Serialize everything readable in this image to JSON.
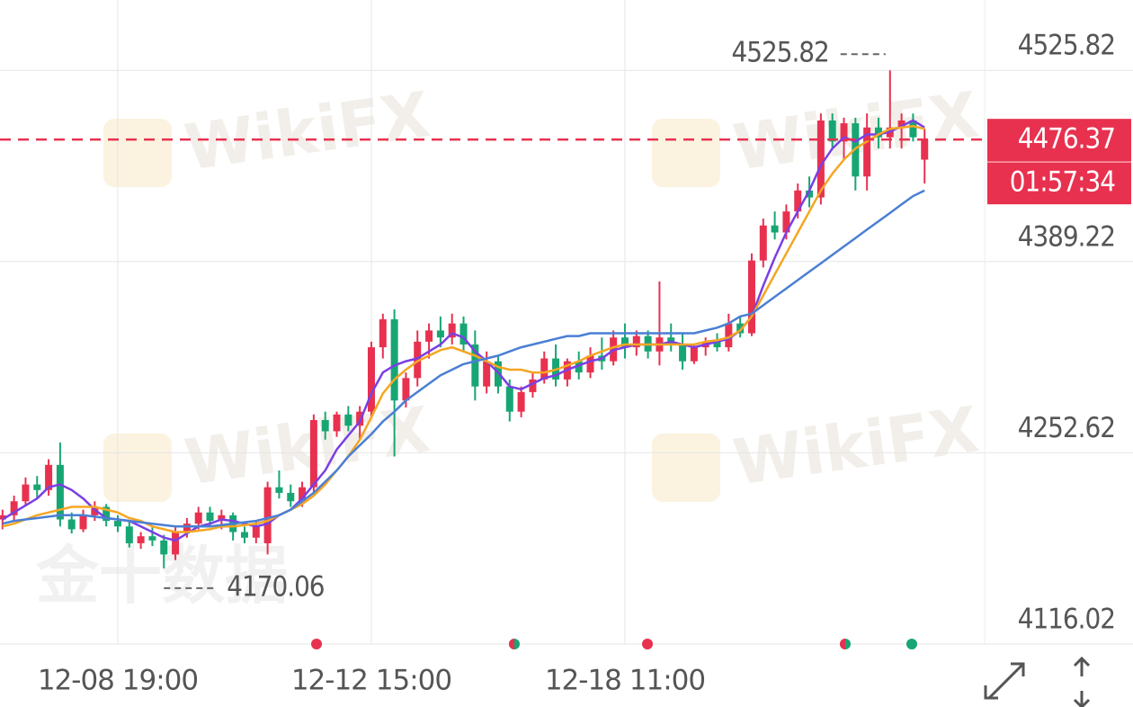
{
  "chart_data": {
    "type": "candlestick",
    "categories": [
      null,
      null,
      null,
      null,
      null,
      null,
      null,
      null,
      null,
      null,
      "12-08 19:00",
      null,
      null,
      null,
      null,
      null,
      null,
      null,
      null,
      null,
      null,
      null,
      null,
      null,
      null,
      null,
      null,
      null,
      null,
      null,
      null,
      null,
      "12-12 15:00",
      null,
      null,
      null,
      null,
      null,
      null,
      null,
      null,
      null,
      null,
      null,
      null,
      null,
      null,
      null,
      null,
      null,
      null,
      null,
      null,
      null,
      "12-18 11:00",
      null,
      null,
      null,
      null,
      null,
      null,
      null,
      null,
      null,
      null,
      null,
      null,
      null,
      null,
      null,
      null,
      null,
      null,
      null,
      null,
      null,
      null,
      null,
      null,
      null,
      null
    ],
    "open": [
      4205,
      4208,
      4218,
      4230,
      4226,
      4244,
      4205,
      4198,
      4208,
      4214,
      4204,
      4200,
      4188,
      4193,
      4190,
      4180,
      4196,
      4202,
      4210,
      4204,
      4208,
      4196,
      4192,
      4188,
      4228,
      4224,
      4218,
      4228,
      4276,
      4268,
      4280,
      4272,
      4282,
      4328,
      4348,
      4290,
      4306,
      4332,
      4340,
      4335,
      4345,
      4330,
      4300,
      4318,
      4300,
      4282,
      4296,
      4305,
      4320,
      4305,
      4318,
      4310,
      4322,
      4318,
      4335,
      4328,
      4336,
      4325,
      4335,
      4330,
      4318,
      4328,
      4332,
      4328,
      4345,
      4338,
      4390,
      4415,
      4410,
      4425,
      4440,
      4435,
      4490,
      4475,
      4488,
      4450,
      4485,
      4478,
      4485,
      4490,
      4462
    ],
    "high": [
      4212,
      4222,
      4235,
      4236,
      4248,
      4260,
      4210,
      4212,
      4218,
      4216,
      4208,
      4204,
      4196,
      4200,
      4194,
      4200,
      4206,
      4214,
      4214,
      4212,
      4210,
      4200,
      4204,
      4232,
      4240,
      4230,
      4232,
      4280,
      4282,
      4282,
      4286,
      4286,
      4332,
      4352,
      4355,
      4310,
      4340,
      4345,
      4350,
      4352,
      4350,
      4340,
      4325,
      4322,
      4305,
      4300,
      4310,
      4325,
      4330,
      4320,
      4325,
      4328,
      4335,
      4340,
      4345,
      4340,
      4340,
      4375,
      4345,
      4338,
      4330,
      4335,
      4338,
      4352,
      4350,
      4395,
      4420,
      4425,
      4430,
      4445,
      4450,
      4495,
      4495,
      4492,
      4492,
      4495,
      4492,
      4525.82,
      4495,
      4495,
      4484
    ],
    "low": [
      4198,
      4204,
      4215,
      4220,
      4222,
      4200,
      4195,
      4196,
      4204,
      4200,
      4196,
      4185,
      4184,
      4186,
      4170.06,
      4176,
      4192,
      4198,
      4200,
      4198,
      4190,
      4188,
      4188,
      4180,
      4220,
      4214,
      4214,
      4224,
      4262,
      4264,
      4268,
      4262,
      4278,
      4320,
      4250,
      4285,
      4300,
      4320,
      4328,
      4330,
      4325,
      4290,
      4295,
      4295,
      4275,
      4278,
      4292,
      4302,
      4300,
      4300,
      4305,
      4306,
      4312,
      4315,
      4320,
      4322,
      4320,
      4315,
      4325,
      4312,
      4316,
      4322,
      4325,
      4325,
      4335,
      4336,
      4385,
      4405,
      4405,
      4420,
      4428,
      4430,
      4470,
      4462,
      4440,
      4440,
      4470,
      4470,
      4470,
      4475,
      4445
    ],
    "close": [
      4208,
      4218,
      4230,
      4226,
      4244,
      4205,
      4198,
      4208,
      4214,
      4204,
      4200,
      4188,
      4193,
      4190,
      4180,
      4196,
      4202,
      4210,
      4204,
      4208,
      4196,
      4192,
      4200,
      4228,
      4224,
      4218,
      4228,
      4276,
      4268,
      4280,
      4272,
      4282,
      4328,
      4348,
      4290,
      4306,
      4332,
      4340,
      4335,
      4345,
      4330,
      4300,
      4318,
      4300,
      4282,
      4296,
      4305,
      4320,
      4305,
      4318,
      4310,
      4322,
      4318,
      4335,
      4328,
      4336,
      4325,
      4335,
      4330,
      4318,
      4328,
      4332,
      4328,
      4345,
      4338,
      4390,
      4415,
      4410,
      4425,
      4440,
      4435,
      4490,
      4475,
      4488,
      4450,
      4485,
      4478,
      4485,
      4490,
      4478,
      4476.37
    ],
    "up_color": "#e8314f",
    "down_color": "#17a673",
    "series": [
      {
        "color": "#7b3fe4",
        "values": [
          4205,
          4210,
          4215,
          4220,
          4228,
          4230,
          4226,
          4220,
          4212,
          4206,
          4205,
          4204,
          4200,
          4196,
          4192,
          4190,
          4195,
          4200,
          4202,
          4205,
          4204,
          4202,
          4200,
          4202,
          4208,
          4212,
          4220,
          4230,
          4240,
          4255,
          4265,
          4275,
          4295,
          4310,
          4315,
          4318,
          4320,
          4325,
          4330,
          4338,
          4335,
          4325,
          4318,
          4310,
          4300,
          4298,
          4302,
          4306,
          4308,
          4312,
          4315,
          4318,
          4320,
          4326,
          4328,
          4330,
          4330,
          4330,
          4332,
          4330,
          4328,
          4330,
          4332,
          4334,
          4340,
          4350,
          4372,
          4392,
          4410,
          4425,
          4440,
          4458,
          4470,
          4478,
          4475,
          4480,
          4480,
          4482,
          4486,
          4490,
          4485
        ]
      },
      {
        "color": "#f5a623",
        "values": [
          4200,
          4202,
          4205,
          4208,
          4210,
          4212,
          4214,
          4214,
          4214,
          4212,
          4210,
          4206,
          4204,
          4200,
          4198,
          4196,
          4196,
          4197,
          4198,
          4200,
          4200,
          4201,
          4202,
          4204,
          4208,
          4212,
          4216,
          4222,
          4230,
          4240,
          4250,
          4262,
          4278,
          4295,
          4305,
          4312,
          4318,
          4322,
          4326,
          4328,
          4325,
          4322,
          4318,
          4314,
          4312,
          4312,
          4310,
          4310,
          4312,
          4315,
          4318,
          4322,
          4325,
          4328,
          4330,
          4330,
          4330,
          4330,
          4330,
          4330,
          4330,
          4332,
          4333,
          4335,
          4340,
          4350,
          4365,
          4380,
          4395,
          4410,
          4425,
          4440,
          4452,
          4462,
          4470,
          4475,
          4480,
          4484,
          4485,
          4486,
          4484
        ]
      },
      {
        "color": "#4a7fd4",
        "values": [
          4202,
          4204,
          4205,
          4206,
          4207,
          4208,
          4208,
          4208,
          4207,
          4206,
          4205,
          4204,
          4203,
          4202,
          4201,
          4200,
          4200,
          4200,
          4200,
          4201,
          4202,
          4203,
          4204,
          4206,
          4208,
          4212,
          4218,
          4224,
          4232,
          4240,
          4250,
          4258,
          4266,
          4275,
          4282,
          4290,
          4296,
          4302,
          4308,
          4312,
          4316,
          4318,
          4320,
          4322,
          4325,
          4328,
          4330,
          4332,
          4334,
          4336,
          4336,
          4338,
          4338,
          4338,
          4338,
          4338,
          4338,
          4338,
          4338,
          4338,
          4338,
          4340,
          4342,
          4345,
          4350,
          4352,
          4358,
          4364,
          4370,
          4376,
          4382,
          4388,
          4394,
          4400,
          4406,
          4412,
          4418,
          4424,
          4430,
          4436,
          4440
        ]
      }
    ],
    "ylim": [
      4116.02,
      4576.06
    ],
    "yticks": [
      4525.82,
      4389.22,
      4252.62,
      4116.02
    ],
    "grid": true,
    "countdown": "01:57:34",
    "watermarks": [
      "WikiFX",
      "金十数据"
    ]
  }
}
